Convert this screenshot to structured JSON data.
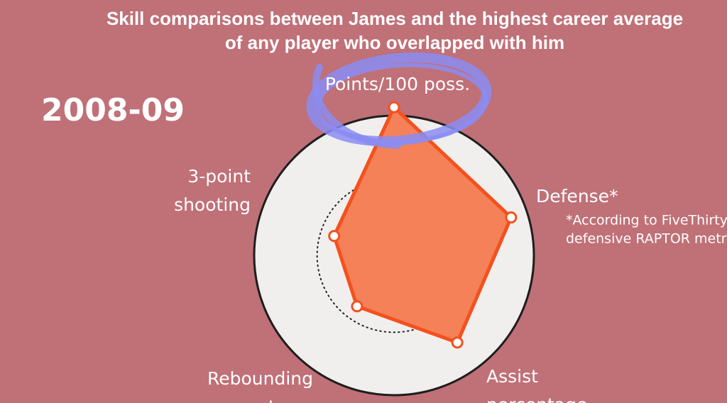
{
  "chart_data": {
    "type": "radar",
    "title": [
      "Skill comparisons between James and the highest career average",
      "of any player who overlapped with him"
    ],
    "season": "2008-09",
    "axes": [
      [
        "Points/100 poss."
      ],
      [
        "Defense*"
      ],
      [
        "Assist",
        "percentage"
      ],
      [
        "Rebounding",
        "percentage"
      ],
      [
        "3-point",
        "shooting"
      ]
    ],
    "note": [
      "*According to FiveThirtyEight's",
      "defensive RAPTOR metric"
    ],
    "values": [
      1.06,
      0.88,
      0.77,
      0.45,
      0.45
    ],
    "color": "#f4511e",
    "rlim": [
      0,
      1
    ],
    "rgrid": [
      0.1,
      0.55,
      1
    ]
  }
}
